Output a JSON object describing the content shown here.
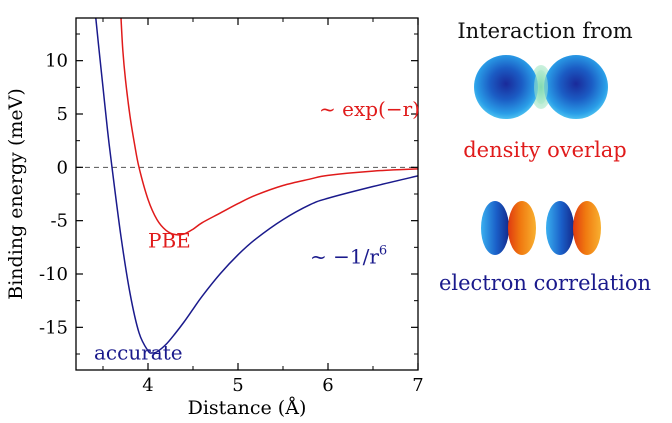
{
  "chart_data": {
    "type": "line",
    "xlabel": "Distance (Å)",
    "ylabel": "Binding energy (meV)",
    "xlim": [
      3.2,
      7.0
    ],
    "ylim": [
      -19.0,
      14.0
    ],
    "x_ticks": [
      4,
      5,
      6,
      7
    ],
    "y_ticks": [
      10,
      5,
      0,
      -5,
      -10,
      -15
    ],
    "zero_line": {
      "y": 0,
      "style": "dashed"
    },
    "grid": false,
    "colors": {
      "pbe": "#e01b1b",
      "accurate": "#1a1a8c"
    },
    "series": [
      {
        "name": "PBE",
        "color": "#e01b1b",
        "x": [
          3.7,
          3.72,
          3.75,
          3.8,
          3.85,
          3.9,
          4.0,
          4.1,
          4.2,
          4.3,
          4.4,
          4.5,
          4.6,
          4.8,
          5.0,
          5.2,
          5.5,
          5.8,
          6.0,
          6.5,
          7.0
        ],
        "y": [
          14.0,
          11.0,
          8.2,
          4.8,
          2.2,
          0.0,
          -3.0,
          -4.9,
          -5.9,
          -6.3,
          -6.25,
          -5.8,
          -5.2,
          -4.3,
          -3.4,
          -2.6,
          -1.7,
          -1.1,
          -0.75,
          -0.35,
          -0.15
        ]
      },
      {
        "name": "accurate",
        "color": "#1a1a8c",
        "x": [
          3.42,
          3.45,
          3.5,
          3.55,
          3.6,
          3.7,
          3.8,
          3.9,
          4.0,
          4.05,
          4.1,
          4.2,
          4.3,
          4.4,
          4.5,
          4.6,
          4.8,
          5.0,
          5.2,
          5.5,
          5.8,
          6.0,
          6.5,
          7.0
        ],
        "y": [
          14.0,
          11.5,
          7.5,
          3.5,
          0.0,
          -6.5,
          -11.8,
          -15.5,
          -17.2,
          -17.4,
          -17.3,
          -16.6,
          -15.6,
          -14.5,
          -13.3,
          -12.1,
          -10.0,
          -8.2,
          -6.7,
          -4.9,
          -3.5,
          -2.9,
          -1.8,
          -0.8
        ]
      }
    ],
    "annotations": [
      {
        "text": "PBE",
        "color": "#e01b1b",
        "x": 4.0,
        "y": -7.5
      },
      {
        "text": "accurate",
        "color": "#1a1a8c",
        "x": 3.4,
        "y": -18.0
      },
      {
        "text": "~ exp(−r)",
        "color": "#e01b1b",
        "x": 5.9,
        "y": 4.8
      },
      {
        "text": "~ −1/r",
        "sup": "6",
        "color": "#1a1a8c",
        "x": 5.8,
        "y": -9.0
      }
    ]
  },
  "side_panel": {
    "title": "Interaction from",
    "captions": [
      {
        "text": "density overlap",
        "color": "#e01b1b"
      },
      {
        "text": "electron correlation",
        "color": "#1a1a8c"
      }
    ]
  }
}
